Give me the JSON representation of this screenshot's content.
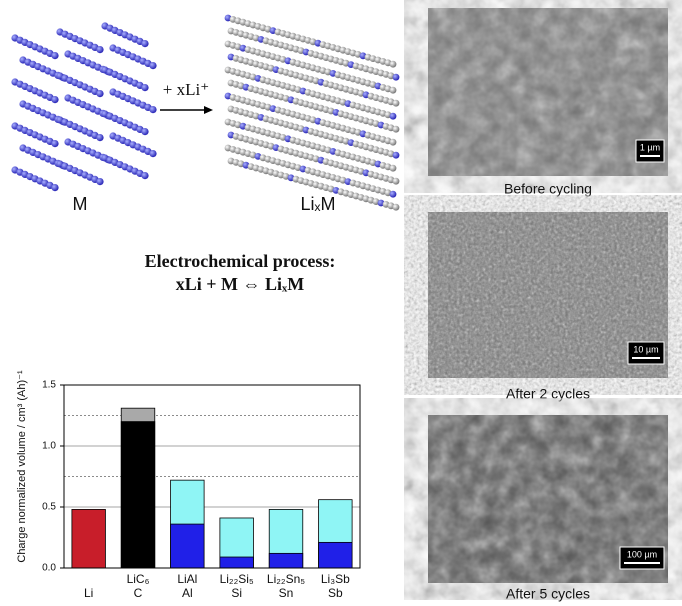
{
  "figure": {
    "reactant_label": "M",
    "arrow_label": "+ xLi⁺",
    "product_label": "LiₓM",
    "process_title": "Electrochemical process:",
    "process_equation": "xLi  +  M  ⇔  LiₓM",
    "micrographs": [
      {
        "scale": "1 µm",
        "caption": "Before cycling"
      },
      {
        "scale": "10 µm",
        "caption": "After 2 cycles"
      },
      {
        "scale": "100 µm",
        "caption": "After 5 cycles"
      }
    ]
  },
  "chart_data": {
    "type": "bar",
    "ylabel": "Charge normalized volume / cm³ (Ah)⁻¹",
    "categories": [
      "Li",
      "C",
      "Al",
      "Si",
      "Sn",
      "Sb"
    ],
    "alloy_labels": [
      null,
      "LiC₆",
      "LiAl",
      "Li₂₂Si₅",
      "Li₂₂Sn₅",
      "Li₃Sb"
    ],
    "series": [
      {
        "values": [
          null,
          1.31,
          0.72,
          0.41,
          0.48,
          0.56
        ],
        "colors": [
          null,
          "#a9a9a9",
          "#8ff5f5",
          "#8ff5f5",
          "#8ff5f5",
          "#8ff5f5"
        ]
      },
      {
        "values": [
          0.48,
          1.2,
          0.36,
          0.09,
          0.12,
          0.21
        ],
        "colors": [
          "#c81e2a",
          "#000000",
          "#2020e8",
          "#2020e8",
          "#2020e8",
          "#2020e8"
        ]
      }
    ],
    "ylim": [
      0,
      1.5
    ],
    "yticks": [
      {
        "value": 0,
        "label": "0.0"
      },
      {
        "value": 0.5,
        "label": "0.5"
      },
      {
        "value": 1,
        "label": "1.0"
      },
      {
        "value": 1.5,
        "label": "1.5"
      }
    ],
    "dotted_lines": [
      0.75,
      1.25
    ],
    "grid": true
  }
}
